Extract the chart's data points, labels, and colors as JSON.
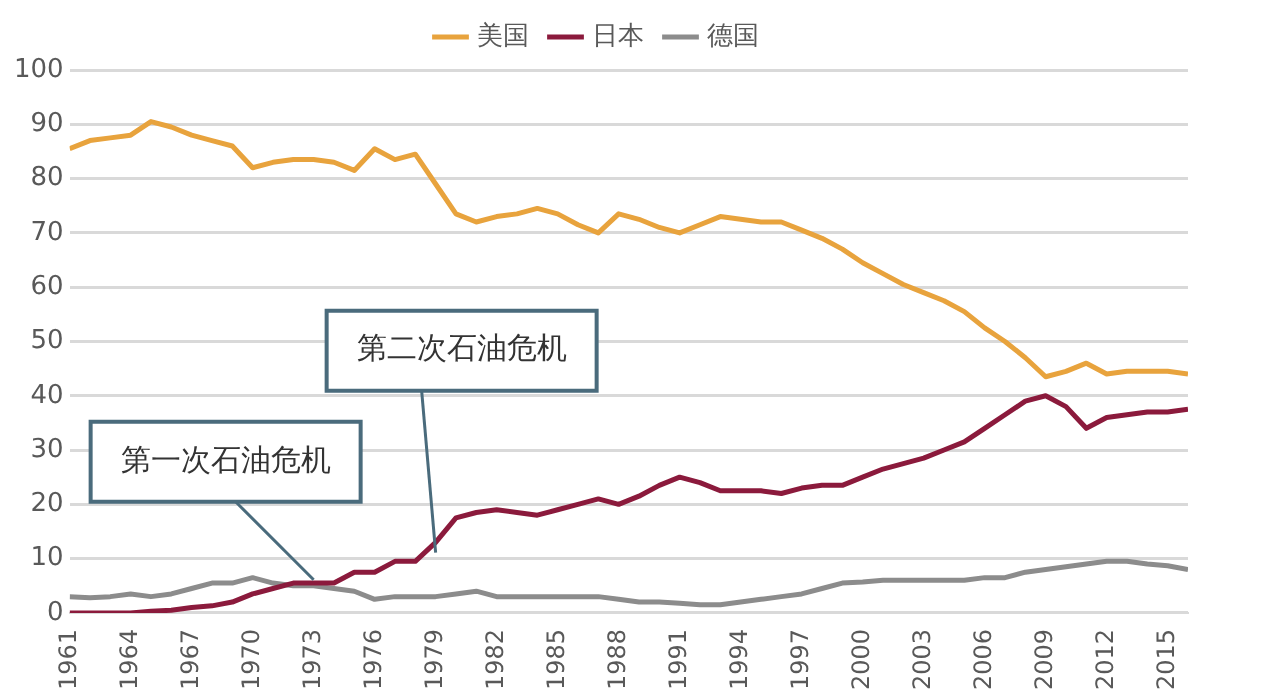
{
  "chart_data": {
    "type": "line",
    "x": [
      1961,
      1962,
      1963,
      1964,
      1965,
      1966,
      1967,
      1968,
      1969,
      1970,
      1971,
      1972,
      1973,
      1974,
      1975,
      1976,
      1977,
      1978,
      1979,
      1980,
      1981,
      1982,
      1983,
      1984,
      1985,
      1986,
      1987,
      1988,
      1989,
      1990,
      1991,
      1992,
      1993,
      1994,
      1995,
      1996,
      1997,
      1998,
      1999,
      2000,
      2001,
      2002,
      2003,
      2004,
      2005,
      2006,
      2007,
      2008,
      2009,
      2010,
      2011,
      2012,
      2013,
      2014,
      2015,
      2016
    ],
    "series": [
      {
        "name": "美国",
        "color": "#e8a33d",
        "values": [
          85.5,
          87,
          87.5,
          88,
          90.5,
          89.5,
          88,
          87,
          86,
          82,
          83,
          83.5,
          83.5,
          83,
          81.5,
          85.5,
          83.5,
          84.5,
          79,
          73.5,
          72,
          73,
          73.5,
          74.5,
          73.5,
          71.5,
          70,
          73.5,
          72.5,
          71,
          70,
          71.5,
          73,
          72.5,
          72,
          72,
          70.5,
          69,
          67,
          64.5,
          62.5,
          60.5,
          59,
          57.5,
          55.5,
          52.5,
          50,
          47,
          43.5,
          44.5,
          46,
          44,
          44.5,
          44.5,
          44.5,
          44
        ]
      },
      {
        "name": "日本",
        "color": "#8b1a3c",
        "values": [
          0,
          0,
          0,
          0,
          0.3,
          0.5,
          1,
          1.3,
          2,
          3.5,
          4.5,
          5.5,
          5.5,
          5.5,
          7.5,
          7.5,
          9.5,
          9.5,
          13,
          17.5,
          18.5,
          19,
          18.5,
          18,
          19,
          20,
          21,
          20,
          21.5,
          23.5,
          25,
          24,
          22.5,
          22.5,
          22.5,
          22,
          23,
          23.5,
          23.5,
          25,
          26.5,
          27.5,
          28.5,
          30,
          31.5,
          34,
          36.5,
          39,
          40,
          38,
          34,
          36,
          36.5,
          37,
          37,
          37.5
        ]
      },
      {
        "name": "德国",
        "color": "#8c8c8c",
        "values": [
          3,
          2.8,
          3,
          3.5,
          3,
          3.5,
          4.5,
          5.5,
          5.5,
          6.5,
          5.5,
          5,
          5,
          4.5,
          4,
          2.5,
          3,
          3,
          3,
          3.5,
          4,
          3,
          3,
          3,
          3,
          3,
          3,
          2.5,
          2,
          2,
          1.8,
          1.5,
          1.5,
          2,
          2.5,
          3,
          3.5,
          4.5,
          5.5,
          5.7,
          6,
          6,
          6,
          6,
          6,
          6.5,
          6.5,
          7.5,
          8,
          8.5,
          9,
          9.5,
          9.5,
          9,
          8.7,
          8
        ]
      }
    ],
    "xlim": [
      1961,
      2016
    ],
    "xticks": [
      1961,
      1964,
      1967,
      1970,
      1973,
      1976,
      1979,
      1982,
      1985,
      1988,
      1991,
      1994,
      1997,
      2000,
      2003,
      2006,
      2009,
      2012,
      2015
    ],
    "ylim": [
      0,
      100
    ],
    "yticks": [
      0,
      10,
      20,
      30,
      40,
      50,
      60,
      70,
      80,
      90,
      100
    ],
    "grid": "y",
    "legend": "top",
    "marker": "none",
    "line_style": "solid",
    "annotations": [
      {
        "text": "第一次石油危机",
        "x": 1973,
        "y": 5
      },
      {
        "text": "第二次石油危机",
        "x": 1979,
        "y": 10
      }
    ]
  }
}
